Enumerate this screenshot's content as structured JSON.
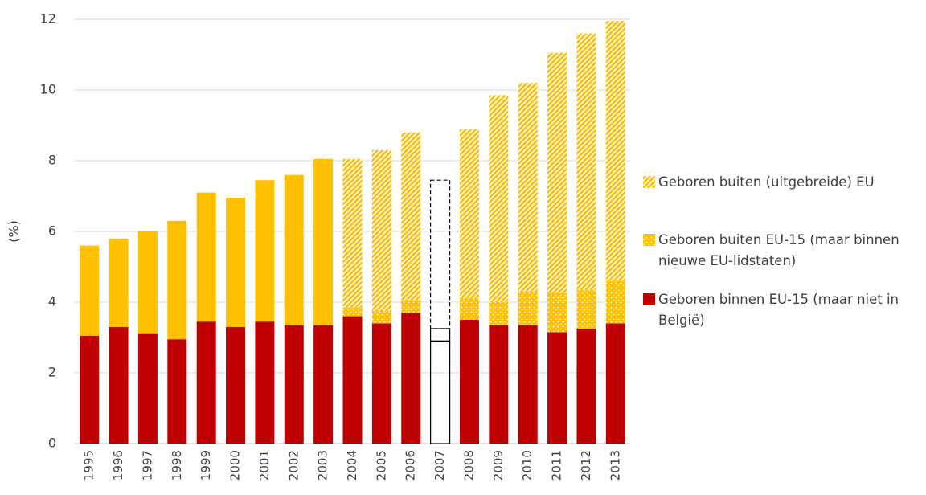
{
  "chart_data": {
    "type": "stacked_bar",
    "y_label": "(%)",
    "categories": [
      "1995",
      "1996",
      "1997",
      "1998",
      "1999",
      "2000",
      "2001",
      "2002",
      "2003",
      "2004",
      "2005",
      "2006",
      "2007",
      "2008",
      "2009",
      "2010",
      "2011",
      "2012",
      "2013"
    ],
    "series": [
      {
        "name": "Geboren binnen EU-15 (maar niet in België)",
        "color": "#c00000",
        "values": [
          3.05,
          3.3,
          3.1,
          2.95,
          3.45,
          3.3,
          3.45,
          3.35,
          3.35,
          3.6,
          3.4,
          3.7,
          2.9,
          3.5,
          3.35,
          3.35,
          3.15,
          3.25,
          3.4
        ]
      },
      {
        "color": "#ffc000",
        "values": [
          2.55,
          2.5,
          2.9,
          3.35,
          3.65,
          3.65,
          4.0,
          4.25,
          4.7,
          null,
          null,
          null,
          null,
          null,
          null,
          null,
          null,
          null,
          null
        ]
      },
      {
        "name": "Geboren buiten EU-15 (maar binnen nieuwe EU-lidstaten)",
        "color": "#ffc000",
        "pattern": "dots",
        "values": [
          null,
          null,
          null,
          null,
          null,
          null,
          null,
          null,
          null,
          0.25,
          0.35,
          0.35,
          0.35,
          0.6,
          0.65,
          0.95,
          1.1,
          1.1,
          1.2
        ]
      },
      {
        "name": "Geboren buiten (uitgebreide) EU",
        "color": "#ffc000",
        "pattern": "hatch",
        "values": [
          null,
          null,
          null,
          null,
          null,
          null,
          null,
          null,
          null,
          4.2,
          4.55,
          4.75,
          4.2,
          4.8,
          5.85,
          5.9,
          6.8,
          7.25,
          7.35
        ]
      }
    ],
    "outlined": [
      false,
      false,
      false,
      false,
      false,
      false,
      false,
      false,
      false,
      false,
      false,
      false,
      true,
      false,
      false,
      false,
      false,
      false,
      false
    ],
    "ylim": [
      0,
      12
    ],
    "yticks": [
      0,
      2,
      4,
      6,
      8,
      10,
      12
    ],
    "grid": true
  }
}
